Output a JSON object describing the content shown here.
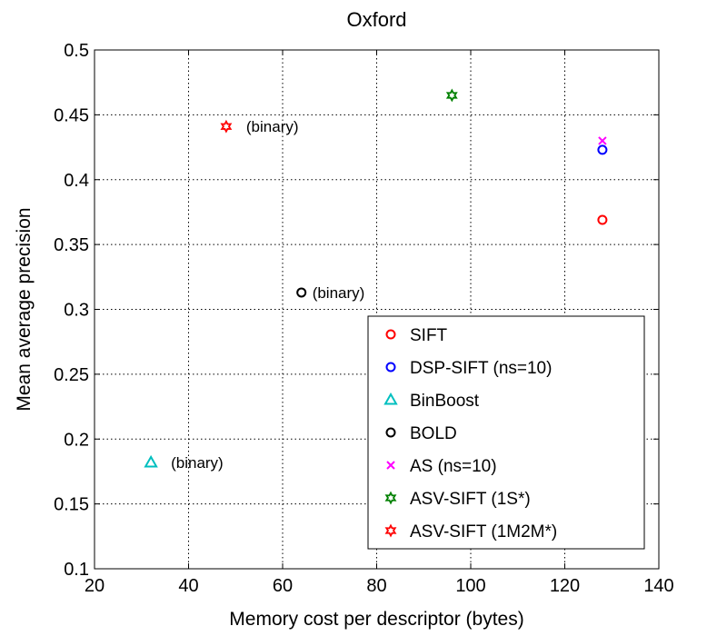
{
  "chart_data": {
    "type": "scatter",
    "title": "Oxford",
    "xlabel": "Memory cost per descriptor (bytes)",
    "ylabel": "Mean average precision",
    "xlim": [
      20,
      140
    ],
    "ylim": [
      0.1,
      0.5
    ],
    "xticks": [
      20,
      40,
      60,
      80,
      100,
      120,
      140
    ],
    "yticks": [
      0.1,
      0.15,
      0.2,
      0.25,
      0.3,
      0.35,
      0.4,
      0.45,
      0.5
    ],
    "grid": true,
    "legend_position": "bottom-right",
    "series": [
      {
        "name": "SIFT",
        "marker": "circle",
        "color": "#ff0000",
        "points": [
          {
            "x": 128,
            "y": 0.369
          }
        ]
      },
      {
        "name": "DSP-SIFT (ns=10)",
        "marker": "circle",
        "color": "#0000ff",
        "points": [
          {
            "x": 128,
            "y": 0.423
          }
        ]
      },
      {
        "name": "BinBoost",
        "marker": "triangle",
        "color": "#00bfbf",
        "points": [
          {
            "x": 32,
            "y": 0.182
          }
        ]
      },
      {
        "name": "BOLD",
        "marker": "circle",
        "color": "#000000",
        "points": [
          {
            "x": 64,
            "y": 0.313
          }
        ]
      },
      {
        "name": "AS (ns=10)",
        "marker": "x",
        "color": "#ff00ff",
        "points": [
          {
            "x": 128,
            "y": 0.43
          }
        ]
      },
      {
        "name": "ASV-SIFT (1S*)",
        "marker": "hexagram",
        "color": "#008000",
        "points": [
          {
            "x": 96,
            "y": 0.465
          }
        ]
      },
      {
        "name": "ASV-SIFT (1M2M*)",
        "marker": "hexagram",
        "color": "#ff0000",
        "points": [
          {
            "x": 48,
            "y": 0.441
          }
        ]
      }
    ],
    "annotations": [
      {
        "text": "(binary)",
        "x": 48,
        "y": 0.441
      },
      {
        "text": "(binary)",
        "x": 64,
        "y": 0.313
      },
      {
        "text": "(binary)",
        "x": 32,
        "y": 0.182
      }
    ]
  }
}
